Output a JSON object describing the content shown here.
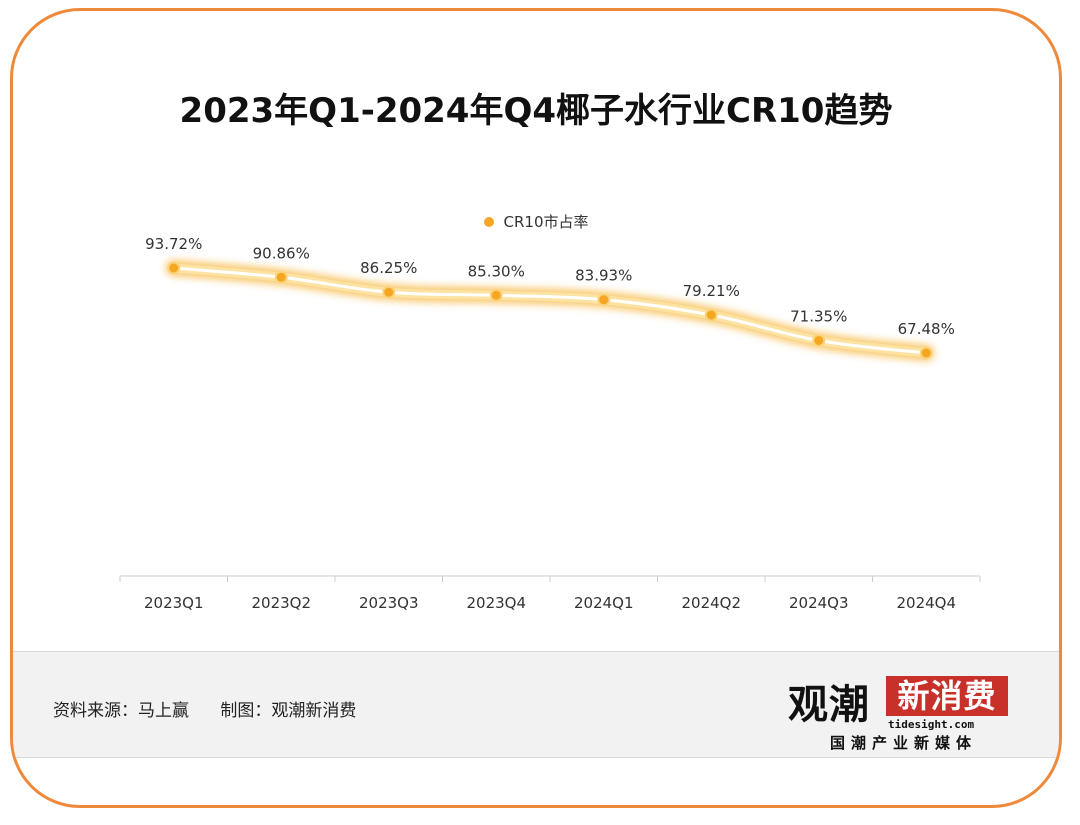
{
  "chart_data": {
    "type": "line",
    "title": "2023年Q1-2024年Q4椰子水行业CR10趋势",
    "categories": [
      "2023Q1",
      "2023Q2",
      "2023Q3",
      "2023Q4",
      "2024Q1",
      "2024Q2",
      "2024Q3",
      "2024Q4"
    ],
    "series": [
      {
        "name": "CR10市占率",
        "values": [
          93.72,
          90.86,
          86.25,
          85.3,
          83.93,
          79.21,
          71.35,
          67.48
        ],
        "labels": [
          "93.72%",
          "90.86%",
          "86.25%",
          "85.30%",
          "83.93%",
          "79.21%",
          "71.35%",
          "67.48%"
        ],
        "color": "#f5a623"
      }
    ],
    "legend_position": "top-center",
    "grid": false,
    "ylim": [
      0,
      100
    ]
  },
  "footer": {
    "source": "资料来源：马上赢",
    "made_by": "制图：观潮新消费"
  },
  "logo": {
    "main": "观潮",
    "badge": "新消费",
    "url": "tidesight.com",
    "tagline": "国潮产业新媒体"
  },
  "colors": {
    "border": "#ef8a3c",
    "line": "#f5a623",
    "logo_red": "#c7312a"
  }
}
